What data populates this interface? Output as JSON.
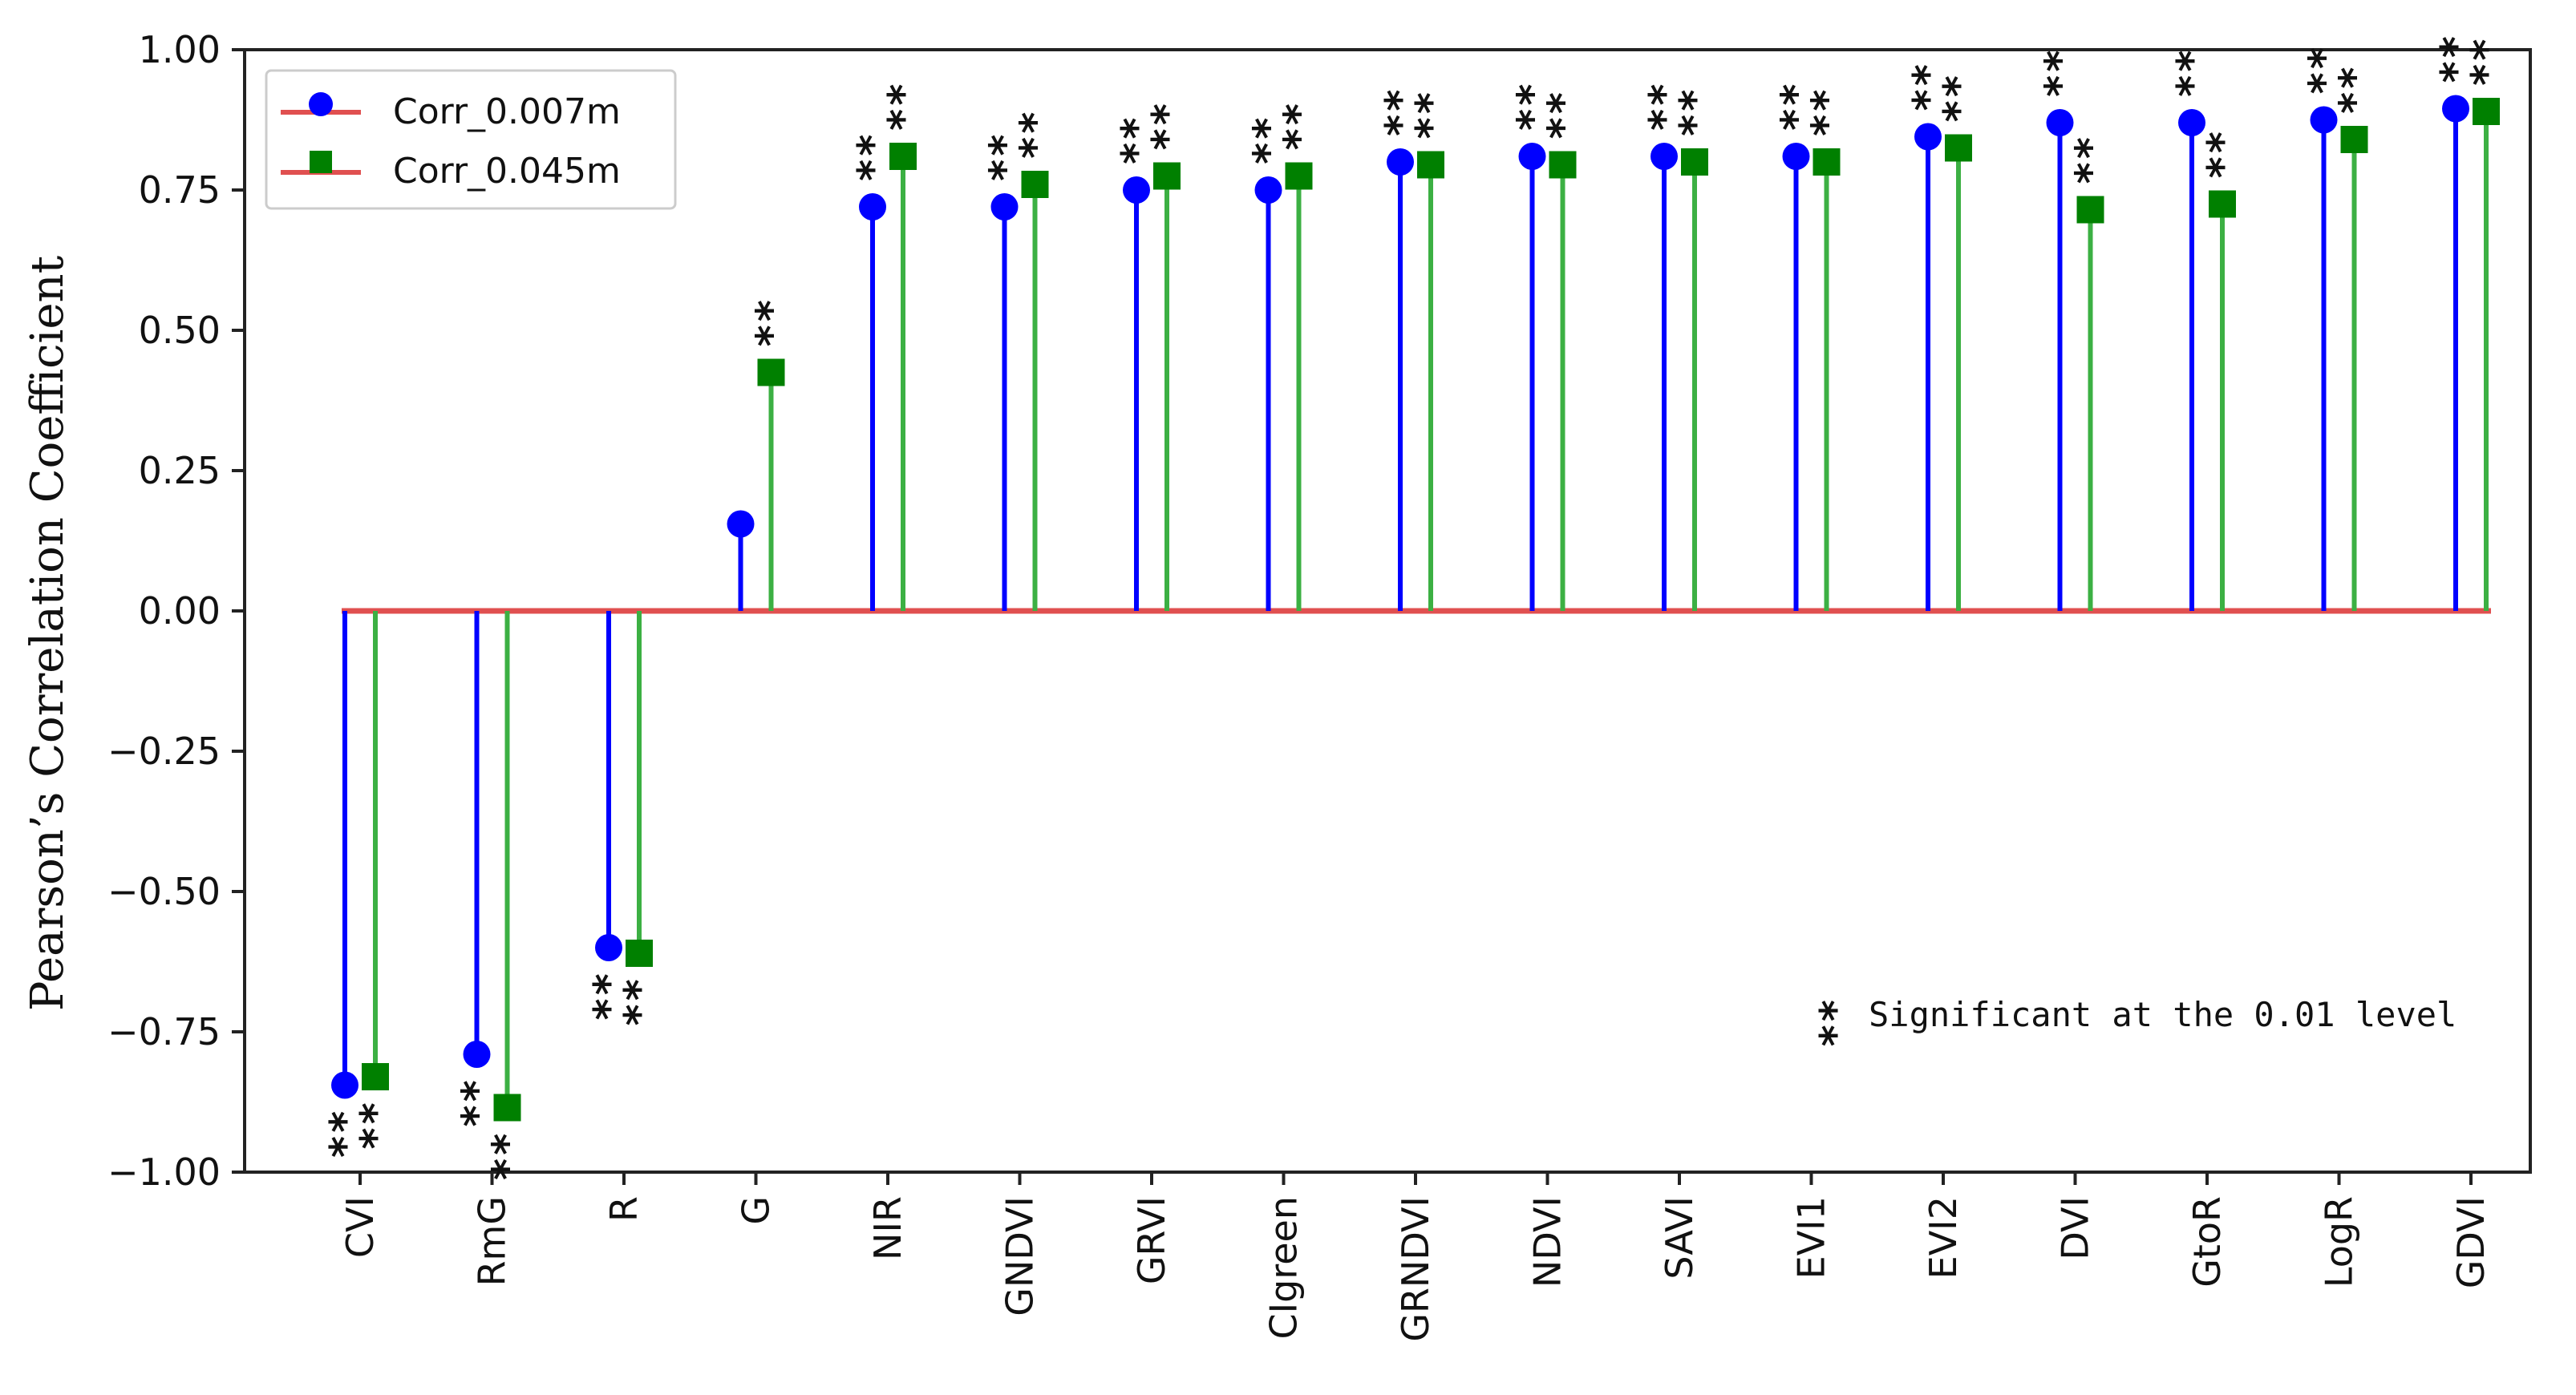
{
  "chart_data": {
    "type": "stem",
    "title": "",
    "xlabel": "",
    "ylabel": "Pearson’s Correlation Coefficient",
    "ylim": [
      -1.0,
      1.0
    ],
    "yticks": [
      "1.00",
      "0.75",
      "0.50",
      "0.25",
      "0.00",
      "−0.25",
      "−0.50",
      "−0.75",
      "−1.00"
    ],
    "ytick_values": [
      1.0,
      0.75,
      0.5,
      0.25,
      0.0,
      -0.25,
      -0.5,
      -0.75,
      -1.0
    ],
    "categories": [
      "CVI",
      "RmG",
      "R",
      "G",
      "NIR",
      "GNDVI",
      "GRVI",
      "CIgreen",
      "GRNDVI",
      "NDVI",
      "SAVI",
      "EVI1",
      "EVI2",
      "DVI",
      "GtoR",
      "LogR",
      "GDVI"
    ],
    "series": [
      {
        "name": "Corr_0.007m",
        "color": "#0000ff",
        "marker": "circle",
        "values": [
          -0.845,
          -0.79,
          -0.6,
          0.155,
          0.72,
          0.72,
          0.75,
          0.75,
          0.8,
          0.81,
          0.81,
          0.81,
          0.845,
          0.87,
          0.87,
          0.875,
          0.895
        ],
        "significant": [
          true,
          true,
          true,
          false,
          true,
          true,
          true,
          true,
          true,
          true,
          true,
          true,
          true,
          true,
          true,
          true,
          true
        ]
      },
      {
        "name": "Corr_0.045m",
        "color": "#008000",
        "stem_color": "#3cb043",
        "marker": "square",
        "values": [
          -0.83,
          -0.885,
          -0.61,
          0.425,
          0.81,
          0.76,
          0.775,
          0.775,
          0.795,
          0.795,
          0.8,
          0.8,
          0.825,
          0.715,
          0.725,
          0.84,
          0.89
        ],
        "significant": [
          true,
          true,
          true,
          true,
          true,
          true,
          true,
          true,
          true,
          true,
          true,
          true,
          true,
          true,
          true,
          true,
          true
        ]
      }
    ],
    "baseline_color": "#e05050",
    "significance_marker": "**",
    "annotation": "Significant at the 0.01 level",
    "legend": {
      "position": "top-left",
      "entries": [
        "Corr_0.007m",
        "Corr_0.045m"
      ]
    }
  }
}
